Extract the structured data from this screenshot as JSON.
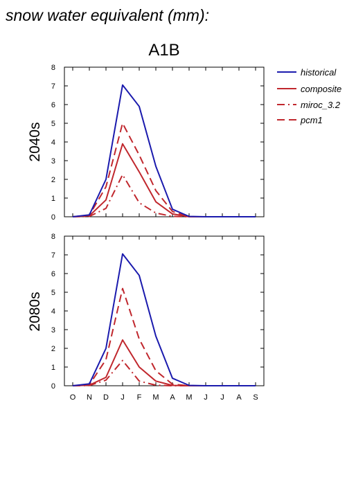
{
  "figure": {
    "title": "snow water equivalent (mm):",
    "scenario": "A1B"
  },
  "colors": {
    "historical": "#1a1aad",
    "future": "#c0272d"
  },
  "chart_data": [
    {
      "type": "line",
      "row_label": "2040s",
      "categories": [
        "O",
        "N",
        "D",
        "J",
        "F",
        "M",
        "A",
        "M",
        "J",
        "J",
        "A",
        "S"
      ],
      "ylim": [
        0,
        8
      ],
      "yticks": [
        0,
        1,
        2,
        3,
        4,
        5,
        6,
        7,
        8
      ],
      "series": [
        {
          "name": "historical",
          "style": "solid",
          "color": "historical",
          "values": [
            0,
            0.1,
            2.0,
            7.05,
            5.9,
            2.7,
            0.4,
            0.02,
            0,
            0,
            0,
            0
          ]
        },
        {
          "name": "composite",
          "style": "solid",
          "color": "future",
          "values": [
            0,
            0.05,
            0.9,
            3.9,
            2.4,
            0.8,
            0.15,
            0,
            0,
            0,
            0,
            0
          ]
        },
        {
          "name": "miroc_3.2",
          "style": "dashdot",
          "color": "future",
          "values": [
            0,
            0.02,
            0.45,
            2.25,
            0.75,
            0.2,
            0.02,
            0,
            0,
            0,
            0,
            0
          ]
        },
        {
          "name": "pcm1",
          "style": "dashed",
          "color": "future",
          "values": [
            0,
            0.08,
            1.6,
            5.0,
            3.3,
            1.4,
            0.28,
            0,
            0,
            0,
            0,
            0
          ]
        }
      ]
    },
    {
      "type": "line",
      "row_label": "2080s",
      "categories": [
        "O",
        "N",
        "D",
        "J",
        "F",
        "M",
        "A",
        "M",
        "J",
        "J",
        "A",
        "S"
      ],
      "ylim": [
        0,
        8
      ],
      "yticks": [
        0,
        1,
        2,
        3,
        4,
        5,
        6,
        7,
        8
      ],
      "series": [
        {
          "name": "historical",
          "style": "solid",
          "color": "historical",
          "values": [
            0,
            0.1,
            2.0,
            7.05,
            5.9,
            2.65,
            0.4,
            0.02,
            0,
            0,
            0,
            0
          ]
        },
        {
          "name": "composite",
          "style": "solid",
          "color": "future",
          "values": [
            0,
            0.03,
            0.45,
            2.45,
            1.0,
            0.25,
            0.02,
            0,
            0,
            0,
            0,
            0
          ]
        },
        {
          "name": "miroc_3.2",
          "style": "dashdot",
          "color": "future",
          "values": [
            0,
            0.01,
            0.3,
            1.35,
            0.25,
            0.03,
            0,
            0,
            0,
            0,
            0,
            0
          ]
        },
        {
          "name": "pcm1",
          "style": "dashed",
          "color": "future",
          "values": [
            0,
            0.05,
            1.4,
            5.2,
            2.5,
            0.8,
            0.08,
            0,
            0,
            0,
            0,
            0
          ]
        }
      ]
    }
  ],
  "legend": {
    "position": "top-right",
    "entries": [
      {
        "label": "historical",
        "style": "solid",
        "color": "historical"
      },
      {
        "label": "composite",
        "style": "solid",
        "color": "future"
      },
      {
        "label": "miroc_3.2",
        "style": "dashdot",
        "color": "future"
      },
      {
        "label": "pcm1",
        "style": "dashed",
        "color": "future"
      }
    ]
  }
}
